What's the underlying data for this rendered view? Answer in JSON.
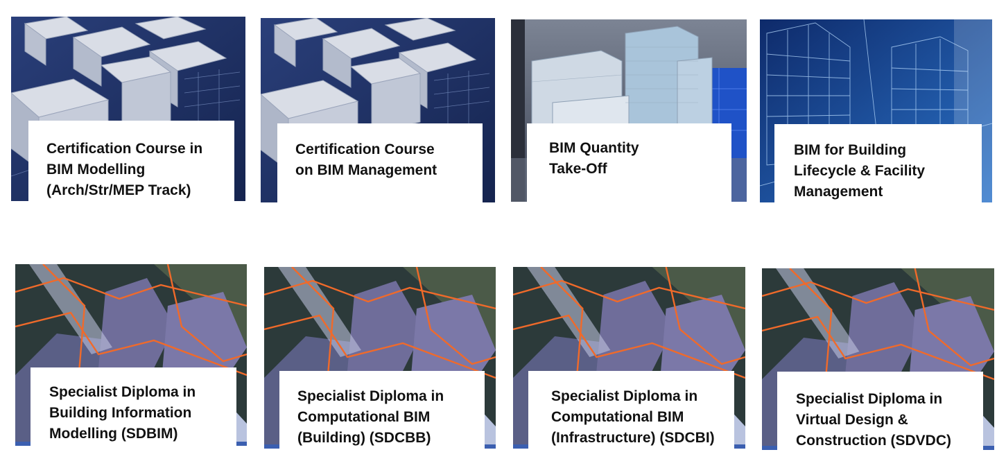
{
  "row1": [
    {
      "lines": [
        "Certification Course in",
        "BIM Modelling",
        "(Arch/Str/MEP Track)"
      ],
      "image": "white-buildings-blueprint"
    },
    {
      "lines": [
        "Certification Course",
        "on BIM Management"
      ],
      "image": "white-buildings-blueprint"
    },
    {
      "lines": [
        "BIM Quantity",
        "Take-Off"
      ],
      "image": "glass-towers-blueprint"
    },
    {
      "lines": [
        "BIM for Building",
        "Lifecycle & Facility",
        "Management"
      ],
      "image": "wireframe-skyscrapers"
    }
  ],
  "row2": [
    {
      "lines": [
        "Specialist Diploma in",
        "Building Information",
        "Modelling (SDBIM)"
      ],
      "image": "city-aerial-orange-lines"
    },
    {
      "lines": [
        "Specialist Diploma in",
        "Computational BIM",
        "(Building) (SDCBB)"
      ],
      "image": "city-aerial-orange-lines"
    },
    {
      "lines": [
        "Specialist Diploma in",
        "Computational BIM",
        "(Infrastructure) (SDCBI)"
      ],
      "image": "city-aerial-orange-lines"
    },
    {
      "lines": [
        "Specialist Diploma in",
        "Virtual Design &",
        "Construction (SDVDC)"
      ],
      "image": "city-aerial-orange-lines"
    }
  ],
  "colors": {
    "navy": "#1d2f6b",
    "label_bg": "#ffffff",
    "text": "#111111",
    "orange": "#f06a2a"
  }
}
